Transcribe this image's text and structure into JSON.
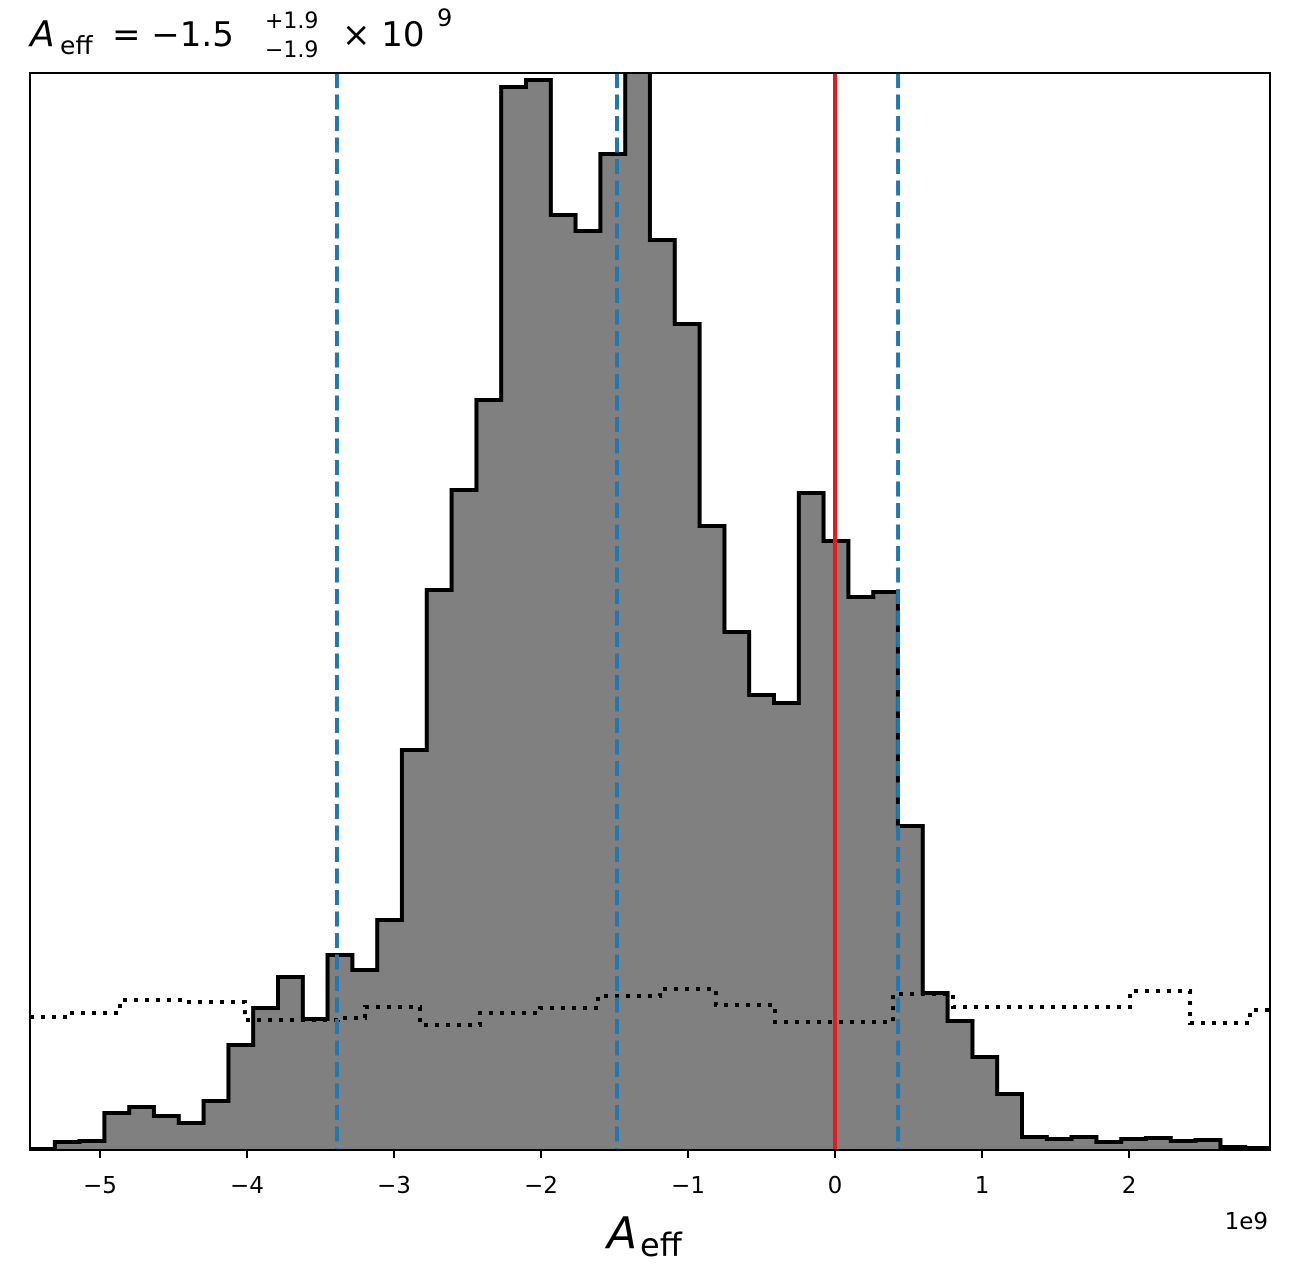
{
  "chart_data": {
    "type": "histogram",
    "title_parts": {
      "symbol": "A",
      "subscript": "eff",
      "equals": "= −1.5",
      "upper": "+1.9",
      "lower": "−1.9",
      "times": "× 10",
      "exponent": "9"
    },
    "x_label": {
      "symbol": "A",
      "subscript": "eff"
    },
    "offset_text": "1e9",
    "xlim": [
      -5.476,
      2.959
    ],
    "ylim": [
      0,
      1077
    ],
    "xticks": [
      {
        "value": -5,
        "label": "−5"
      },
      {
        "value": -4,
        "label": "−4"
      },
      {
        "value": -3,
        "label": "−3"
      },
      {
        "value": -2,
        "label": "−2"
      },
      {
        "value": -1,
        "label": "−1"
      },
      0,
      1,
      2
    ],
    "series": [
      {
        "style": "filled",
        "color": "#808080",
        "edge_color": "#000000",
        "bins": [
          -5.476,
          -5.307,
          -5.139,
          -4.97,
          -4.801,
          -4.633,
          -4.464,
          -4.295,
          -4.126,
          -3.958,
          -3.789,
          -3.62,
          -3.452,
          -3.283,
          -3.114,
          -2.946,
          -2.777,
          -2.608,
          -2.439,
          -2.271,
          -2.102,
          -1.933,
          -1.765,
          -1.596,
          -1.427,
          -1.259,
          -1.09,
          -0.921,
          -0.752,
          -0.584,
          -0.415,
          -0.246,
          -0.078,
          0.091,
          0.26,
          0.428,
          0.597,
          0.766,
          0.935,
          1.103,
          1.272,
          1.441,
          1.609,
          1.778,
          1.947,
          2.115,
          2.284,
          2.453,
          2.622,
          2.79,
          2.959
        ],
        "values": [
          1,
          8,
          9,
          37,
          43,
          34,
          27,
          49,
          105,
          142,
          173,
          131,
          195,
          180,
          230,
          400,
          560,
          660,
          750,
          1063,
          1070,
          935,
          919,
          996,
          1100,
          910,
          826,
          624,
          518,
          455,
          447,
          657,
          609,
          553,
          558,
          324,
          157,
          129,
          93,
          56,
          13,
          11,
          13,
          8,
          11,
          12,
          9,
          10,
          3,
          2
        ]
      },
      {
        "style": "dotted",
        "color": "#000000",
        "bins": [
          -5.476,
          -5.204,
          -4.864,
          -4.422,
          -4.014,
          -3.605,
          -3.381,
          -3.197,
          -2.823,
          -2.415,
          -2.007,
          -1.612,
          -1.19,
          -0.81,
          -0.408,
          -0.014,
          0.395,
          0.803,
          1.204,
          1.605,
          2.007,
          2.415,
          2.823,
          2.959
        ],
        "values": [
          133,
          137,
          150,
          148,
          130,
          130,
          132,
          143,
          125,
          137,
          142,
          154,
          161,
          145,
          128,
          128,
          156,
          143,
          143,
          143,
          159,
          127,
          140
        ]
      }
    ],
    "vlines": [
      {
        "x": -3.388,
        "color": "#1f77b4",
        "style": "dashed"
      },
      {
        "x": -1.483,
        "color": "#1f77b4",
        "style": "dashed"
      },
      {
        "x": 0.429,
        "color": "#1f77b4",
        "style": "dashed"
      },
      {
        "x": 0,
        "color": "#e41a1c",
        "style": "solid"
      }
    ]
  }
}
